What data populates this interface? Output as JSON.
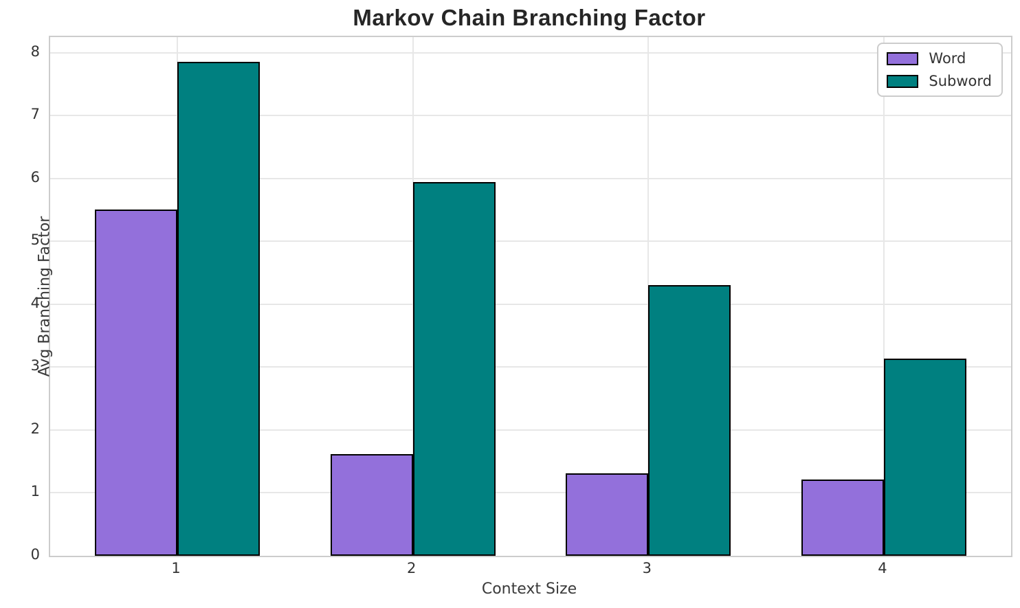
{
  "chart_data": {
    "type": "bar",
    "title": "Markov Chain Branching Factor",
    "xlabel": "Context Size",
    "ylabel": "Avg Branching Factor",
    "categories": [
      "1",
      "2",
      "3",
      "4"
    ],
    "series": [
      {
        "name": "Word",
        "color": "#9370DB",
        "values": [
          5.51,
          1.62,
          1.31,
          1.21
        ]
      },
      {
        "name": "Subword",
        "color": "#008080",
        "values": [
          7.86,
          5.95,
          4.31,
          3.14
        ]
      }
    ],
    "yticks": [
      0,
      1,
      2,
      3,
      4,
      5,
      6,
      7,
      8
    ],
    "ylim": [
      0,
      8.25
    ],
    "xlim": [
      0.46,
      4.54
    ],
    "bar_width_units": 0.35,
    "bar_edge_color": "#000000",
    "grid": true,
    "grid_color": "#e7e7e7",
    "spine_color": "#cccccc",
    "legend_position": "upper right",
    "legend_labels": [
      "Word",
      "Subword"
    ]
  }
}
